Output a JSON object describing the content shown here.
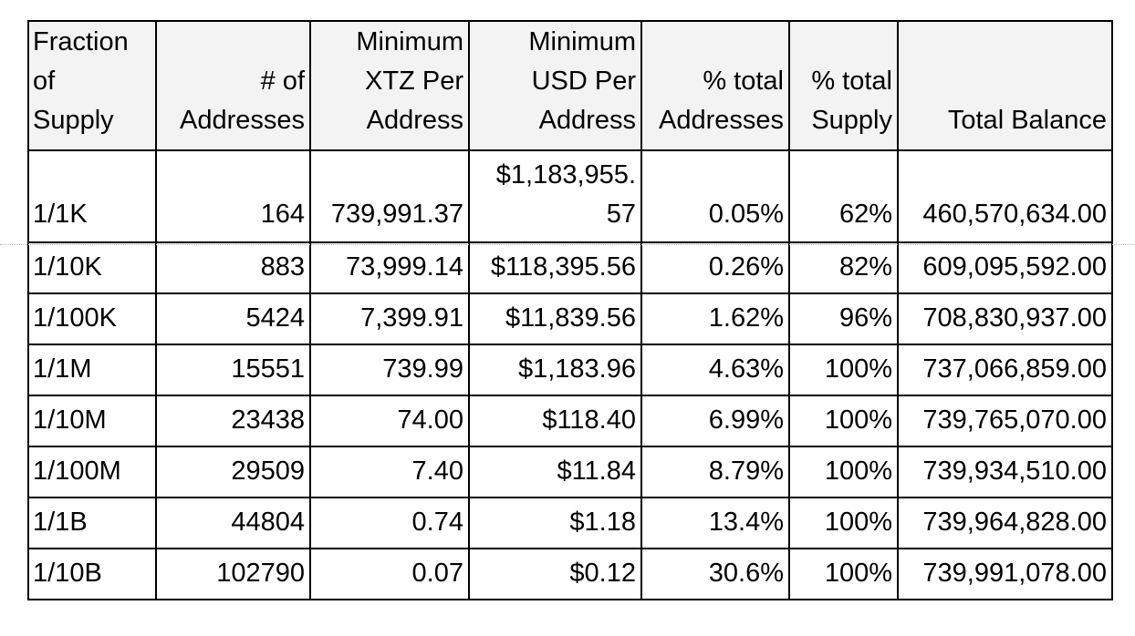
{
  "table": {
    "headers": [
      "Fraction\nof\nSupply",
      "# of\nAddresses",
      "Minimum\nXTZ Per\nAddress",
      "Minimum\nUSD Per\nAddress",
      "% total\nAddresses",
      "% total\nSupply",
      "Total Balance"
    ],
    "rows": [
      [
        "1/1K",
        "164",
        "739,991.37",
        "$1,183,955.\n57",
        "0.05%",
        "62%",
        "460,570,634.00"
      ],
      [
        "1/10K",
        "883",
        "73,999.14",
        "$118,395.56",
        "0.26%",
        "82%",
        "609,095,592.00"
      ],
      [
        "1/100K",
        "5424",
        "7,399.91",
        "$11,839.56",
        "1.62%",
        "96%",
        "708,830,937.00"
      ],
      [
        "1/1M",
        "15551",
        "739.99",
        "$1,183.96",
        "4.63%",
        "100%",
        "737,066,859.00"
      ],
      [
        "1/10M",
        "23438",
        "74.00",
        "$118.40",
        "6.99%",
        "100%",
        "739,765,070.00"
      ],
      [
        "1/100M",
        "29509",
        "7.40",
        "$11.84",
        "8.79%",
        "100%",
        "739,934,510.00"
      ],
      [
        "1/1B",
        "44804",
        "0.74",
        "$1.18",
        "13.4%",
        "100%",
        "739,964,828.00"
      ],
      [
        "1/10B",
        "102790",
        "0.07",
        "$0.12",
        "30.6%",
        "100%",
        "739,991,078.00"
      ]
    ]
  }
}
